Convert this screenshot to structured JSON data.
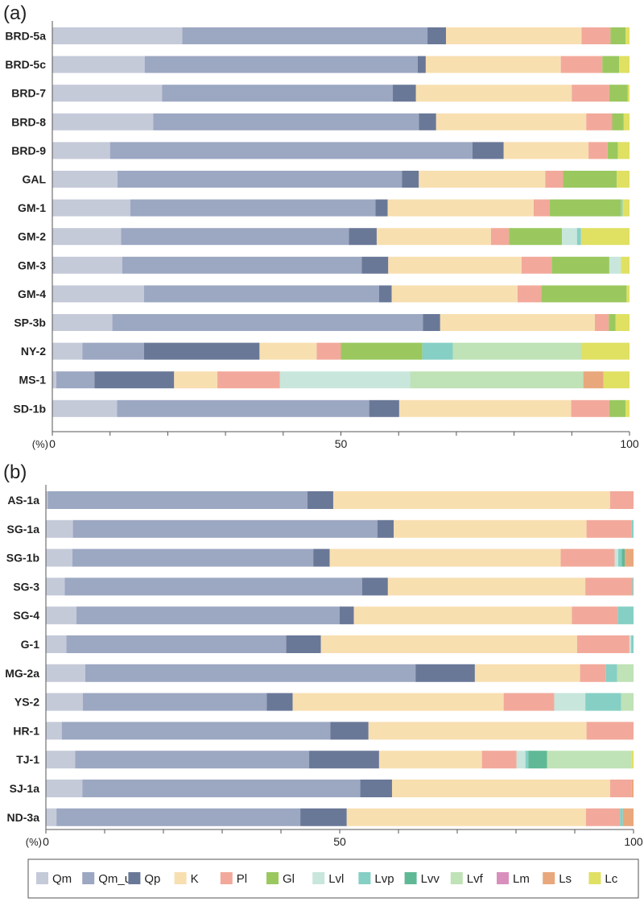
{
  "legend": {
    "items": [
      "Qm",
      "Qm_un",
      "Qp",
      "K",
      "Pl",
      "Gl",
      "Lvl",
      "Lvp",
      "Lvv",
      "Lvf",
      "Lm",
      "Ls",
      "Lc"
    ],
    "colors": {
      "Qm": "#c5cad9",
      "Qm_un": "#9ca7c2",
      "Qp": "#6a7898",
      "K": "#f8dfb0",
      "Pl": "#f2a99b",
      "Gl": "#9ac85f",
      "Lvl": "#c8e6dc",
      "Lvp": "#86cfc5",
      "Lvv": "#5fb996",
      "Lvf": "#bfe2b6",
      "Lm": "#d98fbc",
      "Ls": "#e8a87c",
      "Lc": "#e0e063"
    }
  },
  "chart_data": [
    {
      "type": "bar",
      "orientation": "horizontal",
      "stacked": true,
      "panel_label": "(a)",
      "unit_label": "(%)",
      "xlim": [
        0,
        100
      ],
      "xticks": [
        0,
        50,
        100
      ],
      "components": [
        "Qm",
        "Qm_un",
        "Qp",
        "K",
        "Pl",
        "Gl",
        "Lvl",
        "Lvp",
        "Lvv",
        "Lvf",
        "Lm",
        "Ls",
        "Lc"
      ],
      "rows": [
        {
          "label": "BRD-5a",
          "values": [
            22.5,
            42.5,
            3.2,
            23.5,
            5,
            2.6,
            0,
            0,
            0,
            0,
            0,
            0,
            0.7
          ]
        },
        {
          "label": "BRD-5c",
          "values": [
            16,
            47.3,
            1.4,
            23.4,
            7.2,
            2.9,
            0,
            0,
            0,
            0,
            0,
            0,
            1.8
          ]
        },
        {
          "label": "BRD-7",
          "values": [
            19,
            40,
            4,
            27,
            6.5,
            3.2,
            0,
            0,
            0,
            0,
            0,
            0,
            0.3
          ]
        },
        {
          "label": "BRD-8",
          "values": [
            17.5,
            46,
            3,
            26,
            4.5,
            2,
            0,
            0,
            0,
            0,
            0,
            0,
            1
          ]
        },
        {
          "label": "BRD-9",
          "values": [
            10,
            62.8,
            5.4,
            14.7,
            3.3,
            1.8,
            0,
            0,
            0,
            0,
            0,
            0,
            2
          ]
        },
        {
          "label": "GAL",
          "values": [
            11.3,
            49.3,
            2.9,
            21.9,
            3.1,
            9.3,
            0,
            0,
            0,
            0,
            0,
            0,
            2.2
          ]
        },
        {
          "label": "GM-1",
          "values": [
            13.5,
            42.5,
            2.1,
            25.3,
            2.8,
            12.3,
            0,
            0.3,
            0,
            0,
            0,
            0,
            1.2
          ]
        },
        {
          "label": "GM-2",
          "values": [
            11.9,
            39.5,
            4.8,
            19.8,
            3.1,
            9.2,
            2.6,
            0.7,
            0,
            0,
            0,
            0,
            8.4
          ]
        },
        {
          "label": "GM-3",
          "values": [
            12.1,
            41.5,
            4.6,
            23.1,
            5.2,
            10,
            2,
            0,
            0,
            0,
            0,
            0,
            1.5
          ]
        },
        {
          "label": "GM-4",
          "values": [
            15.9,
            40.7,
            2.2,
            21.8,
            4.1,
            14.8,
            0,
            0,
            0,
            0,
            0,
            0,
            0.5
          ]
        },
        {
          "label": "SP-3b",
          "values": [
            10.4,
            53.8,
            3,
            26.8,
            2.4,
            1.2,
            0,
            0,
            0,
            0,
            0,
            0,
            2.4
          ]
        },
        {
          "label": "NY-2",
          "values": [
            5.2,
            10.7,
            20,
            9.9,
            4.2,
            14.1,
            0,
            5.3,
            0,
            22.3,
            0,
            0,
            8.3
          ]
        },
        {
          "label": "MS-1",
          "values": [
            0.7,
            6.6,
            13.8,
            7.5,
            10.8,
            0,
            22.6,
            0,
            0,
            30,
            0,
            3.5,
            4.5
          ]
        },
        {
          "label": "SD-1b",
          "values": [
            11.2,
            43.7,
            5.2,
            29.8,
            6.6,
            2.8,
            0,
            0,
            0,
            0,
            0,
            0,
            0.7
          ]
        }
      ]
    },
    {
      "type": "bar",
      "orientation": "horizontal",
      "stacked": true,
      "panel_label": "(b)",
      "unit_label": "(%)",
      "xlim": [
        0,
        100
      ],
      "xticks": [
        0,
        50,
        100
      ],
      "components": [
        "Qm",
        "Qm_un",
        "Qp",
        "K",
        "Pl",
        "Gl",
        "Lvl",
        "Lvp",
        "Lvv",
        "Lvf",
        "Lm",
        "Ls",
        "Lc"
      ],
      "rows": [
        {
          "label": "AS-1a",
          "values": [
            0.3,
            44.2,
            4.4,
            47.1,
            4,
            0,
            0,
            0,
            0,
            0,
            0,
            0,
            0
          ]
        },
        {
          "label": "SG-1a",
          "values": [
            4.6,
            51.8,
            2.8,
            32.8,
            7.7,
            0,
            0,
            0.3,
            0,
            0,
            0,
            0,
            0
          ]
        },
        {
          "label": "SG-1b",
          "values": [
            4.5,
            41,
            2.8,
            39.3,
            9.2,
            0,
            0.6,
            0.6,
            0.5,
            0,
            0,
            1.5,
            0
          ]
        },
        {
          "label": "SG-3",
          "values": [
            3.2,
            50.6,
            4.4,
            33.6,
            8,
            0,
            0,
            0.2,
            0,
            0,
            0,
            0,
            0
          ]
        },
        {
          "label": "SG-4",
          "values": [
            5.2,
            44.8,
            2.4,
            37.1,
            7.8,
            0,
            0,
            2.7,
            0,
            0,
            0,
            0,
            0
          ]
        },
        {
          "label": "G-1",
          "values": [
            3.5,
            37.4,
            5.9,
            43.6,
            8.9,
            0,
            0.3,
            0.4,
            0,
            0,
            0,
            0,
            0
          ]
        },
        {
          "label": "MG-2a",
          "values": [
            6.7,
            56.2,
            10.1,
            17.9,
            4.4,
            0,
            0,
            1.9,
            0,
            2.8,
            0,
            0,
            0
          ]
        },
        {
          "label": "YS-2",
          "values": [
            6.3,
            31.3,
            4.4,
            35.9,
            8.6,
            0,
            5.3,
            6.1,
            0,
            2.1,
            0,
            0,
            0
          ]
        },
        {
          "label": "HR-1",
          "values": [
            2.7,
            45.7,
            6.5,
            37.1,
            8,
            0,
            0,
            0,
            0,
            0,
            0,
            0,
            0
          ]
        },
        {
          "label": "TJ-1",
          "values": [
            5,
            39.8,
            11.9,
            17.5,
            5.9,
            0,
            1.5,
            0.5,
            3.2,
            14.4,
            0,
            0,
            0.3
          ]
        },
        {
          "label": "SJ-1a",
          "values": [
            6.2,
            47.3,
            5.4,
            37.1,
            3.7,
            0,
            0,
            0,
            0,
            0,
            0,
            0.3,
            0
          ]
        },
        {
          "label": "ND-3a",
          "values": [
            1.8,
            41.5,
            7.9,
            40.7,
            5.8,
            0,
            0,
            0.5,
            0,
            0,
            0,
            1.8,
            0
          ]
        }
      ]
    }
  ]
}
